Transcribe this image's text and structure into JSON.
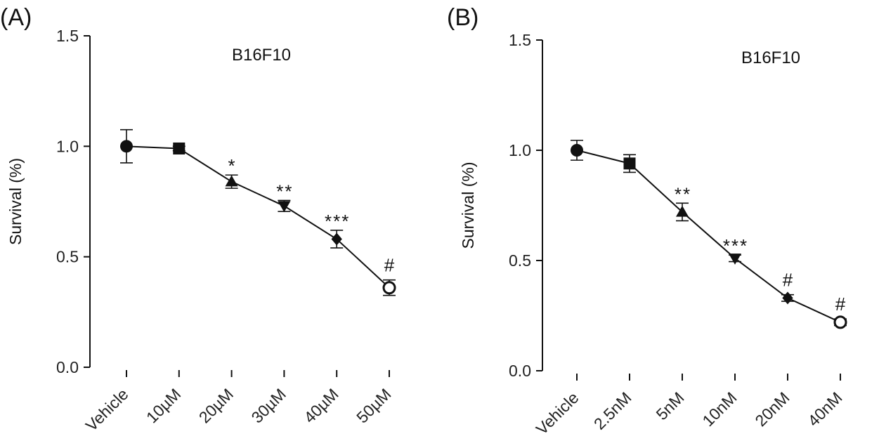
{
  "chart_data": [
    {
      "type": "line",
      "panel_label": "(A)",
      "title": "B16F10",
      "xlabel": "",
      "ylabel": "Survival (%)",
      "ylim": [
        0,
        1.5
      ],
      "yticks": [
        "0.0",
        "0.5",
        "1.0",
        "1.5"
      ],
      "categories": [
        "Vehicle",
        "10µM",
        "20µM",
        "30µM",
        "40µM",
        "50µM"
      ],
      "values": [
        1.0,
        0.99,
        0.84,
        0.73,
        0.58,
        0.36
      ],
      "errors": [
        0.075,
        0.01,
        0.03,
        0.025,
        0.04,
        0.035
      ],
      "markers": [
        "circle",
        "square",
        "triangle-up",
        "triangle-down",
        "diamond",
        "open-circle"
      ],
      "annotations": [
        "",
        "",
        "*",
        "**",
        "***",
        "#"
      ]
    },
    {
      "type": "line",
      "panel_label": "(B)",
      "title": "B16F10",
      "xlabel": "",
      "ylabel": "Survival (%)",
      "ylim": [
        0,
        1.5
      ],
      "yticks": [
        "0.0",
        "0.5",
        "1.0",
        "1.5"
      ],
      "categories": [
        "Vehicle",
        "2.5nM",
        "5nM",
        "10nM",
        "20nM",
        "40nM"
      ],
      "values": [
        1.0,
        0.94,
        0.72,
        0.51,
        0.33,
        0.22
      ],
      "errors": [
        0.045,
        0.04,
        0.04,
        0.015,
        0.015,
        0.015
      ],
      "markers": [
        "circle",
        "square",
        "triangle-up",
        "triangle-down",
        "diamond",
        "open-circle"
      ],
      "annotations": [
        "",
        "",
        "**",
        "***",
        "#",
        "#"
      ]
    }
  ]
}
